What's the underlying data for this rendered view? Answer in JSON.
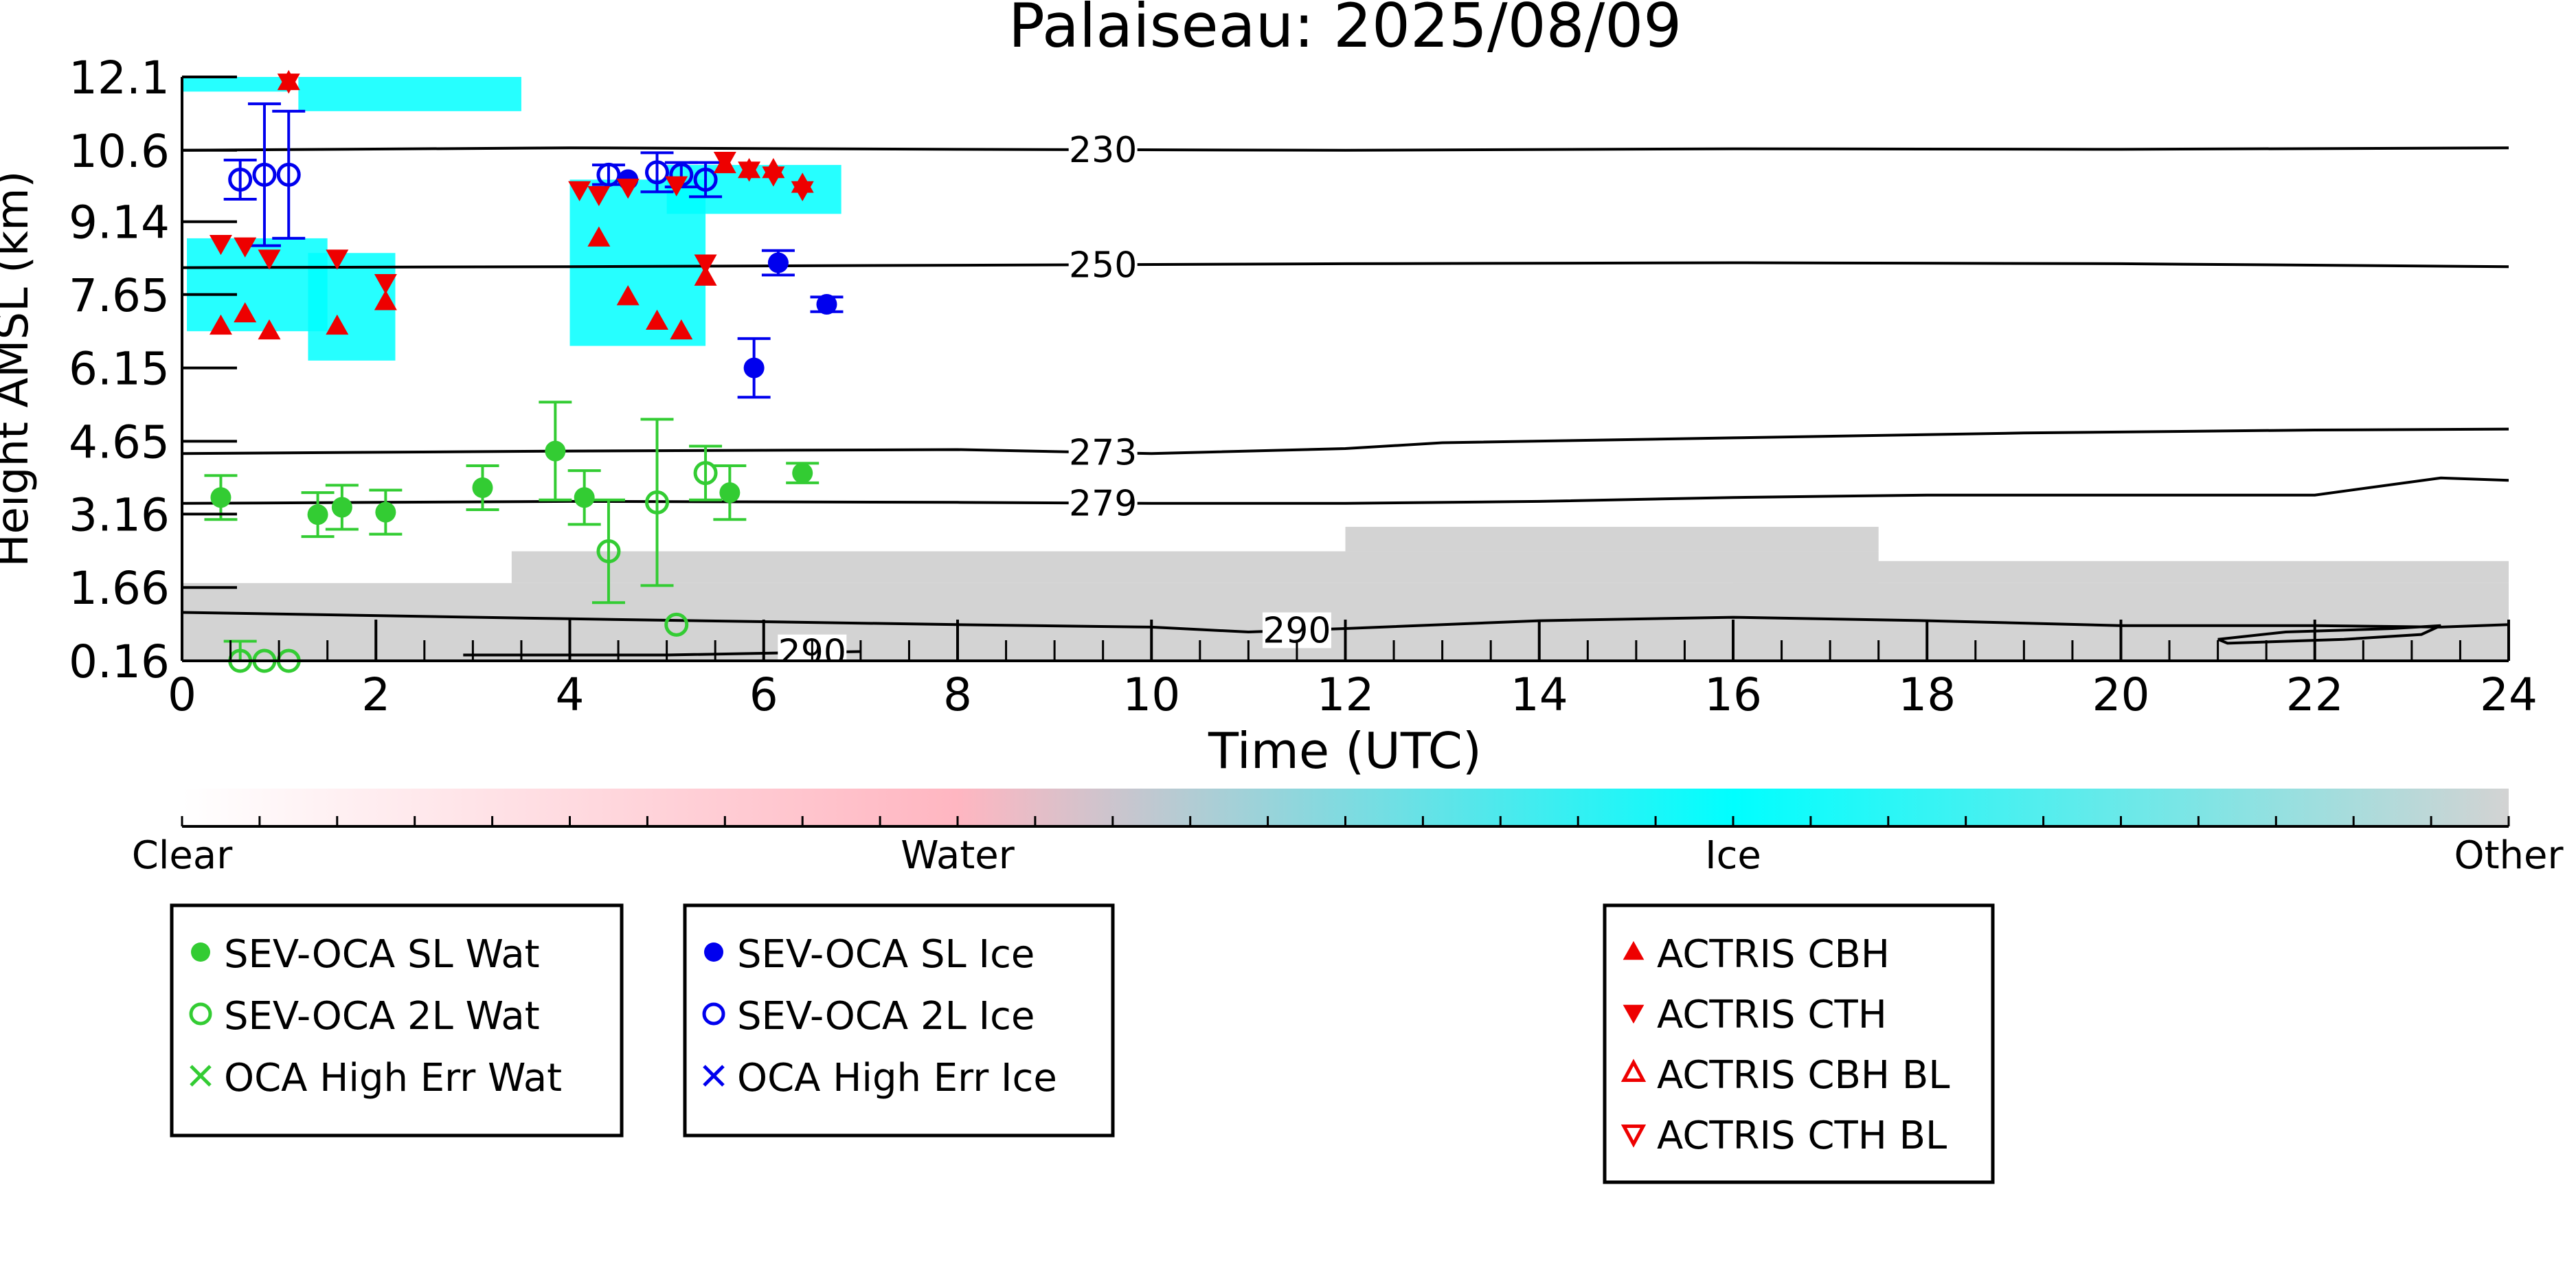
{
  "chart_data": {
    "type": "scatter",
    "title": "Palaiseau: 2025/08/09",
    "xlabel": "Time (UTC)",
    "ylabel": "Height AMSL (km)",
    "xlim": [
      0,
      24
    ],
    "ylim": [
      0.16,
      12.1
    ],
    "x_ticks": [
      "0",
      "2",
      "4",
      "6",
      "8",
      "10",
      "12",
      "14",
      "16",
      "18",
      "20",
      "22",
      "24"
    ],
    "y_ticks": [
      "0.16",
      "1.66",
      "3.16",
      "4.65",
      "6.15",
      "7.65",
      "9.14",
      "10.6",
      "12.1"
    ],
    "y_tick_values": [
      0.16,
      1.66,
      3.16,
      4.65,
      6.15,
      7.65,
      9.14,
      10.6,
      12.1
    ],
    "grid": false,
    "background_classification": {
      "colorbar_labels": [
        "Clear",
        "Water",
        "Ice",
        "Other"
      ],
      "colors": {
        "clear": "#ffffff",
        "water": "#ffb6c1",
        "ice": "#00ffff",
        "other": "#d3d3d3"
      },
      "regions": [
        {
          "class": "ice",
          "x": [
            0.0,
            1.1
          ],
          "y": [
            11.8,
            12.1
          ]
        },
        {
          "class": "ice",
          "x": [
            1.2,
            3.5
          ],
          "y": [
            11.4,
            12.1
          ]
        },
        {
          "class": "ice",
          "x": [
            0.05,
            1.5
          ],
          "y": [
            6.9,
            8.8
          ]
        },
        {
          "class": "ice",
          "x": [
            1.3,
            2.2
          ],
          "y": [
            6.3,
            8.5
          ]
        },
        {
          "class": "ice",
          "x": [
            4.0,
            5.4
          ],
          "y": [
            6.6,
            10.0
          ]
        },
        {
          "class": "ice",
          "x": [
            5.0,
            6.8
          ],
          "y": [
            9.3,
            10.3
          ]
        },
        {
          "class": "other",
          "x": [
            0.0,
            24.0
          ],
          "y": [
            0.16,
            1.75
          ]
        },
        {
          "class": "other",
          "x": [
            3.4,
            17.5
          ],
          "y": [
            1.75,
            2.4
          ]
        },
        {
          "class": "other",
          "x": [
            12.0,
            17.5
          ],
          "y": [
            2.4,
            2.9
          ]
        },
        {
          "class": "other",
          "x": [
            16.0,
            24.0
          ],
          "y": [
            1.75,
            2.2
          ]
        }
      ]
    },
    "contours": [
      {
        "label": "230",
        "label_x": 9.5,
        "points": [
          [
            0,
            10.6
          ],
          [
            4,
            10.65
          ],
          [
            8,
            10.62
          ],
          [
            12,
            10.6
          ],
          [
            16,
            10.63
          ],
          [
            20,
            10.62
          ],
          [
            24,
            10.65
          ]
        ]
      },
      {
        "label": "250",
        "label_x": 9.5,
        "points": [
          [
            0,
            8.2
          ],
          [
            4,
            8.22
          ],
          [
            8,
            8.25
          ],
          [
            12,
            8.28
          ],
          [
            16,
            8.3
          ],
          [
            20,
            8.28
          ],
          [
            24,
            8.22
          ]
        ]
      },
      {
        "label": "273",
        "label_x": 9.5,
        "points": [
          [
            0,
            4.4
          ],
          [
            4,
            4.45
          ],
          [
            8,
            4.48
          ],
          [
            10,
            4.4
          ],
          [
            12,
            4.5
          ],
          [
            13,
            4.62
          ],
          [
            16,
            4.72
          ],
          [
            19,
            4.82
          ],
          [
            22,
            4.88
          ],
          [
            24,
            4.9
          ]
        ]
      },
      {
        "label": "279",
        "label_x": 9.5,
        "points": [
          [
            0,
            3.38
          ],
          [
            4,
            3.42
          ],
          [
            8,
            3.4
          ],
          [
            10,
            3.38
          ],
          [
            12,
            3.38
          ],
          [
            14,
            3.42
          ],
          [
            16,
            3.5
          ],
          [
            18,
            3.55
          ],
          [
            22,
            3.55
          ],
          [
            23.3,
            3.9
          ],
          [
            24,
            3.85
          ]
        ]
      },
      {
        "label": "290",
        "label_x": 11.5,
        "points": [
          [
            0,
            1.15
          ],
          [
            4,
            1.02
          ],
          [
            8,
            0.9
          ],
          [
            10,
            0.85
          ],
          [
            11,
            0.75
          ],
          [
            12,
            0.82
          ],
          [
            14,
            0.98
          ],
          [
            16,
            1.05
          ],
          [
            18,
            0.98
          ],
          [
            20,
            0.88
          ],
          [
            22,
            0.88
          ],
          [
            23.3,
            0.85
          ],
          [
            24,
            0.9
          ]
        ]
      },
      {
        "label": "290",
        "label_x": 6.5,
        "points": [
          [
            2.9,
            0.28
          ],
          [
            5.0,
            0.28
          ],
          [
            7.0,
            0.35
          ]
        ]
      },
      {
        "label": "",
        "points": [
          [
            21,
            0.6
          ],
          [
            21.7,
            0.75
          ],
          [
            22.8,
            0.82
          ],
          [
            23.3,
            0.88
          ],
          [
            23.1,
            0.7
          ],
          [
            22.3,
            0.6
          ],
          [
            21.1,
            0.52
          ],
          [
            21,
            0.6
          ]
        ]
      }
    ],
    "series": [
      {
        "name": "SEV-OCA SL Wat",
        "marker": "filled-circle",
        "color": "#33cc33",
        "points": [
          [
            0.4,
            3.5,
            0.45
          ],
          [
            1.4,
            3.15,
            0.45
          ],
          [
            1.65,
            3.3,
            0.45
          ],
          [
            2.1,
            3.2,
            0.45
          ],
          [
            3.1,
            3.7,
            0.45
          ],
          [
            3.85,
            4.45,
            1.0
          ],
          [
            4.15,
            3.5,
            0.55
          ],
          [
            5.65,
            3.6,
            0.55
          ],
          [
            6.4,
            4.0,
            0.2
          ]
        ]
      },
      {
        "name": "SEV-OCA 2L Wat",
        "marker": "open-circle",
        "color": "#33cc33",
        "points": [
          [
            0.6,
            0.16,
            0.4
          ],
          [
            0.85,
            0.16,
            0
          ],
          [
            1.1,
            0.16,
            0
          ],
          [
            4.4,
            2.4,
            1.05
          ],
          [
            4.9,
            3.4,
            1.7
          ],
          [
            5.1,
            0.9,
            0
          ],
          [
            5.4,
            4.0,
            0.55
          ]
        ]
      },
      {
        "name": "OCA High Err Wat",
        "marker": "x",
        "color": "#33cc33",
        "points": []
      },
      {
        "name": "SEV-OCA SL Ice",
        "marker": "filled-circle",
        "color": "#0000ee",
        "points": [
          [
            4.6,
            10.0,
            0
          ],
          [
            5.9,
            6.15,
            0.6
          ],
          [
            6.15,
            8.3,
            0.25
          ],
          [
            6.65,
            7.45,
            0.15
          ]
        ]
      },
      {
        "name": "SEV-OCA 2L Ice",
        "marker": "open-circle",
        "color": "#0000ee",
        "points": [
          [
            0.6,
            10.0,
            0.4
          ],
          [
            0.85,
            10.1,
            1.45
          ],
          [
            1.1,
            10.1,
            1.3
          ],
          [
            4.4,
            10.1,
            0.2
          ],
          [
            4.9,
            10.15,
            0.4
          ],
          [
            5.15,
            10.1,
            0.25
          ],
          [
            5.4,
            10.0,
            0.35
          ]
        ]
      },
      {
        "name": "OCA High Err Ice",
        "marker": "x",
        "color": "#0000ee",
        "points": []
      },
      {
        "name": "ACTRIS CBH",
        "marker": "triangle-up",
        "color": "#ee0000",
        "points": [
          [
            0.4,
            7.0
          ],
          [
            0.65,
            7.25
          ],
          [
            0.9,
            6.9
          ],
          [
            1.1,
            12.0
          ],
          [
            1.6,
            7.0
          ],
          [
            2.1,
            7.5
          ],
          [
            4.3,
            8.8
          ],
          [
            4.6,
            7.6
          ],
          [
            4.9,
            7.1
          ],
          [
            5.15,
            6.9
          ],
          [
            5.4,
            8.0
          ],
          [
            5.6,
            10.3
          ],
          [
            5.85,
            10.2
          ],
          [
            6.1,
            10.2
          ],
          [
            6.4,
            9.9
          ]
        ]
      },
      {
        "name": "ACTRIS CTH",
        "marker": "triangle-down",
        "color": "#ee0000",
        "points": [
          [
            0.4,
            8.7
          ],
          [
            0.65,
            8.65
          ],
          [
            0.9,
            8.4
          ],
          [
            1.1,
            12.0
          ],
          [
            1.6,
            8.4
          ],
          [
            2.1,
            7.9
          ],
          [
            4.1,
            9.8
          ],
          [
            4.3,
            9.7
          ],
          [
            4.6,
            9.85
          ],
          [
            5.1,
            9.9
          ],
          [
            5.4,
            8.3
          ],
          [
            5.6,
            10.4
          ],
          [
            5.85,
            10.2
          ],
          [
            6.1,
            10.1
          ],
          [
            6.4,
            9.8
          ]
        ]
      },
      {
        "name": "ACTRIS CBH BL",
        "marker": "open-triangle-up",
        "color": "#ee0000",
        "points": []
      },
      {
        "name": "ACTRIS CTH BL",
        "marker": "open-triangle-down",
        "color": "#ee0000",
        "points": []
      }
    ],
    "legend_groups": [
      [
        "SEV-OCA SL Wat",
        "SEV-OCA 2L Wat",
        "OCA High Err Wat"
      ],
      [
        "SEV-OCA SL Ice",
        "SEV-OCA 2L Ice",
        "OCA High Err Ice"
      ],
      [
        "ACTRIS CBH",
        "ACTRIS CTH",
        "ACTRIS CBH BL",
        "ACTRIS CTH BL"
      ]
    ],
    "legend_placement": "below"
  }
}
